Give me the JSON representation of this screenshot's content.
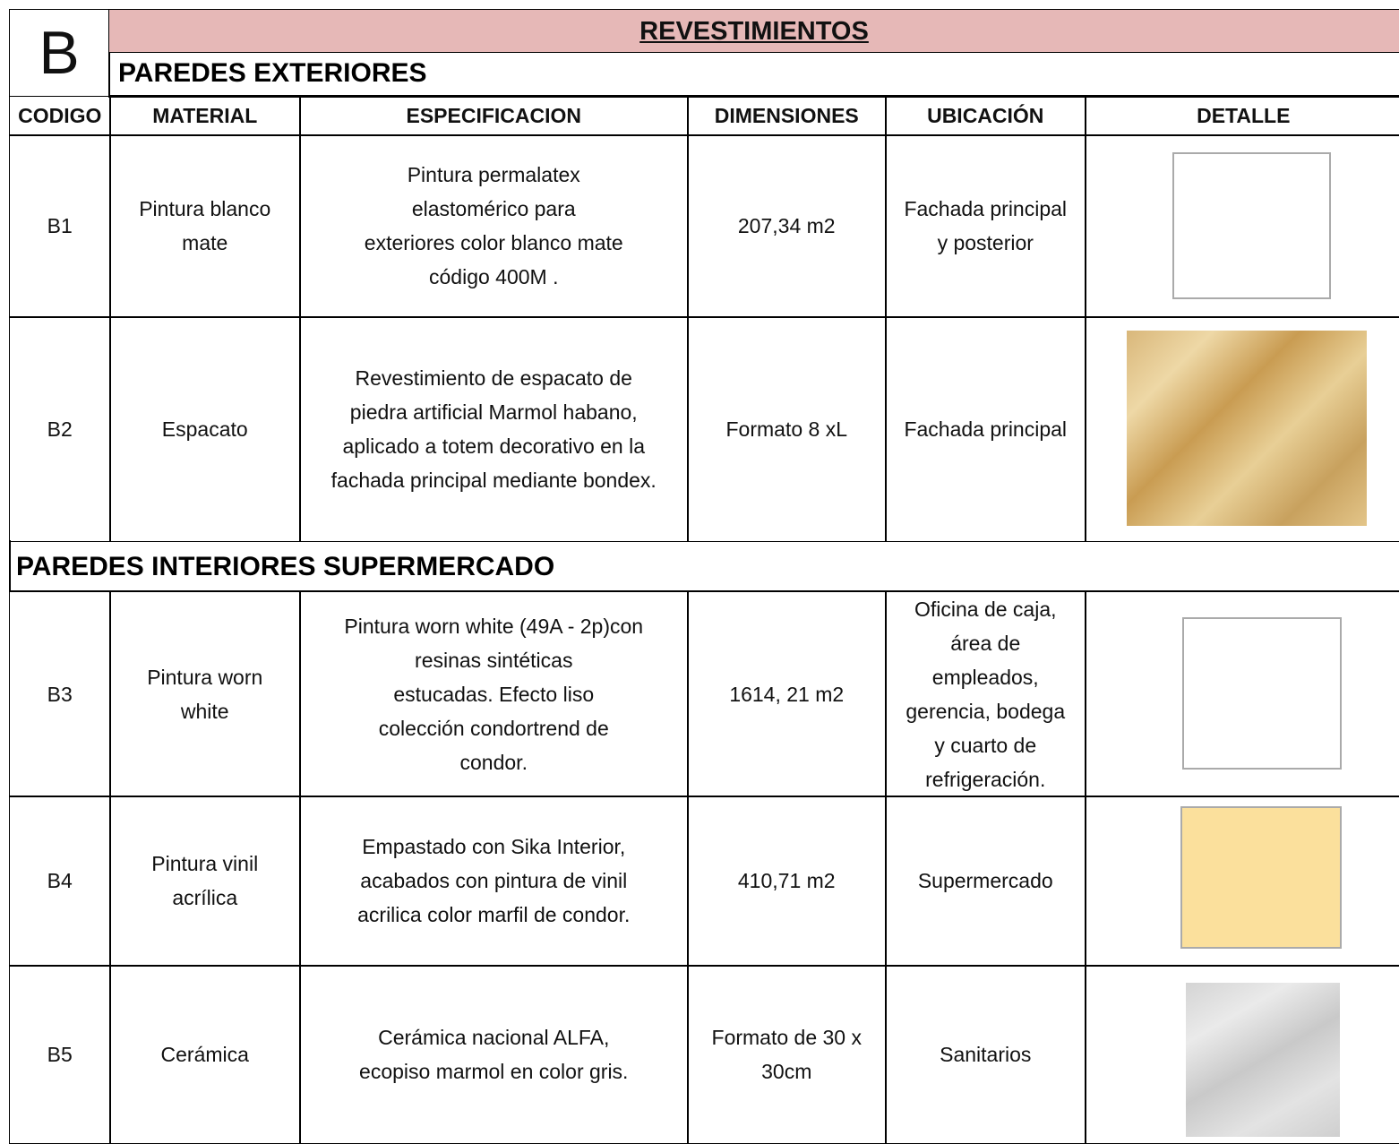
{
  "header": {
    "letter": "B",
    "title": "REVESTIMIENTOS"
  },
  "columns": [
    "CODIGO",
    "MATERIAL",
    "ESPECIFICACION",
    "DIMENSIONES",
    "UBICACIÓN",
    "DETALLE"
  ],
  "sections": [
    {
      "title": "PAREDES EXTERIORES",
      "rows": [
        {
          "code": "B1",
          "material": [
            "Pintura blanco",
            "mate"
          ],
          "spec": [
            "Pintura permalatex",
            "elastomérico para",
            "exteriores color blanco mate",
            "código 400M ."
          ],
          "dimensions": [
            "207,34 m2"
          ],
          "location": [
            "Fachada principal",
            "y posterior"
          ]
        },
        {
          "code": "B2",
          "material": [
            "Espacato"
          ],
          "spec": [
            "Revestimiento de espacato de",
            "piedra artificial Marmol habano,",
            "aplicado a  totem decorativo en la",
            "fachada principal mediante bondex."
          ],
          "dimensions": [
            "Formato 8 xL"
          ],
          "location": [
            "Fachada principal"
          ]
        }
      ]
    },
    {
      "title": "PAREDES INTERIORES SUPERMERCADO",
      "rows": [
        {
          "code": "B3",
          "material": [
            "Pintura worn",
            "white"
          ],
          "spec": [
            "Pintura worn white (49A - 2p)con",
            "resinas sintéticas",
            "estucadas. Efecto liso",
            "colección condortrend de",
            "condor."
          ],
          "dimensions": [
            "1614, 21 m2"
          ],
          "location": [
            "Oficina de caja,",
            "área de",
            "empleados,",
            "gerencia, bodega",
            "y cuarto de",
            "refrigeración."
          ]
        },
        {
          "code": "B4",
          "material": [
            "Pintura vinil",
            "acrílica"
          ],
          "spec": [
            "Empastado  con  Sika  Interior,",
            "acabados con pintura  de vinil",
            "acrilica color marfil de condor."
          ],
          "dimensions": [
            "410,71 m2"
          ],
          "location": [
            "Supermercado"
          ]
        },
        {
          "code": "B5",
          "material": [
            "Cerámica"
          ],
          "spec": [
            "Cerámica nacional ALFA,",
            "ecopiso marmol en color gris."
          ],
          "dimensions": [
            "Formato de 30 x",
            "30cm"
          ],
          "location": [
            "Sanitarios"
          ]
        }
      ]
    }
  ]
}
